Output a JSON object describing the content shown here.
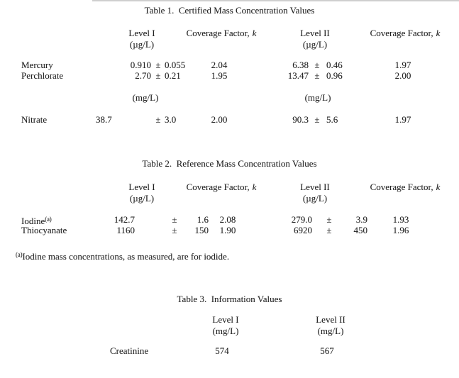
{
  "colors": {
    "background": "#ffffff",
    "text": "#212121"
  },
  "table1": {
    "title": "Table 1.  Certified Mass Concentration Values",
    "headers": {
      "level1": "Level I",
      "level1_unit": "(µg/L)",
      "coverage_factor": "Coverage Factor,",
      "k": "k",
      "level2": "Level II",
      "level2_unit": "(µg/L)"
    },
    "rows": [
      {
        "label": "Mercury",
        "value1": "0.910",
        "pm1": "±",
        "unc1": "0.055",
        "k1": "2.04",
        "value2": "6.38",
        "pm2": "±",
        "unc2": "0.46",
        "k2": "1.97"
      },
      {
        "label": "Perchlorate",
        "value1": "2.70",
        "pm1": "±",
        "unc1": "0.21",
        "k1": "1.95",
        "value2": "13.47",
        "pm2": "±",
        "unc2": "0.96",
        "k2": "2.00"
      },
      {
        "label": "Nitrate",
        "value1": "38.7",
        "pm1": "±",
        "unc1": "3.0",
        "k1": "2.00",
        "value2": "90.3",
        "pm2": "±",
        "unc2": "5.6",
        "k2": "1.97"
      }
    ],
    "units_row": {
      "unit1": "(mg/L)",
      "unit2": "(mg/L)"
    }
  },
  "table2": {
    "title": "Table 2.  Reference Mass Concentration Values",
    "headers": {
      "level1": "Level I",
      "level1_unit": "(µg/L)",
      "coverage_factor": "Coverage Factor,",
      "k": "k",
      "level2": "Level II",
      "level2_unit": "(µg/L)"
    },
    "rows": [
      {
        "label": "Iodine",
        "label_sup": "(a)",
        "value1": "142.7",
        "pm1": "±",
        "unc1": "1.6",
        "k1": "2.08",
        "value2": "279.0",
        "pm2": "±",
        "unc2": "3.9",
        "k2": "1.93"
      },
      {
        "label": "Thiocyanate",
        "value1": "1160",
        "pm1": "±",
        "unc1": "150",
        "k1": "1.90",
        "value2": "6920",
        "pm2": "±",
        "unc2": "450",
        "k2": "1.96"
      }
    ],
    "footnote": {
      "sup": "(a)",
      "text": "Iodine mass concentrations, as measured, are for iodide."
    }
  },
  "table3": {
    "title": "Table 3.  Information Values",
    "headers": {
      "level1": "Level I",
      "level1_unit": "(mg/L)",
      "level2": "Level II",
      "level2_unit": "(mg/L)"
    },
    "rows": [
      {
        "label": "Creatinine",
        "value1": "574",
        "value2": "567"
      }
    ]
  }
}
